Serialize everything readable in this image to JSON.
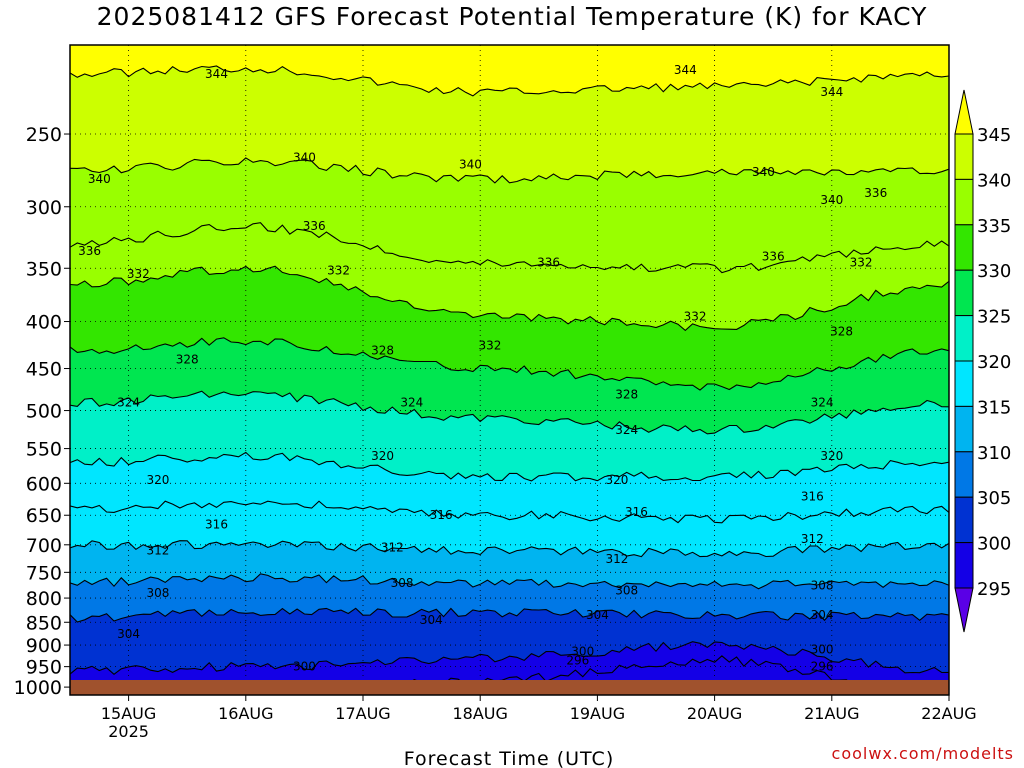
{
  "title": "2025081412 GFS Forecast Potential Temperature (K) for KACY",
  "credit": "coolwx.com/modelts",
  "colors": {
    "ground": "#a0522d",
    "frame": "#000000",
    "credit": "#cc1111",
    "grid": "#000000"
  },
  "chart_data": {
    "type": "heatmap",
    "title": "2025081412 GFS Forecast Potential Temperature (K) for KACY",
    "xlabel": "Forecast Time (UTC)",
    "ylabel": "",
    "x_range": [
      "2025-08-14T12",
      "2025-08-22T00"
    ],
    "y_scale": "log-pressure (hPa), inverted",
    "y_range_hPa": [
      1020,
      200
    ],
    "x_ticks": [
      {
        "label": "15AUG",
        "sub": "2025",
        "t": "2025-08-15T00"
      },
      {
        "label": "16AUG",
        "sub": "",
        "t": "2025-08-16T00"
      },
      {
        "label": "17AUG",
        "sub": "",
        "t": "2025-08-17T00"
      },
      {
        "label": "18AUG",
        "sub": "",
        "t": "2025-08-18T00"
      },
      {
        "label": "19AUG",
        "sub": "",
        "t": "2025-08-19T00"
      },
      {
        "label": "20AUG",
        "sub": "",
        "t": "2025-08-20T00"
      },
      {
        "label": "21AUG",
        "sub": "",
        "t": "2025-08-21T00"
      },
      {
        "label": "22AUG",
        "sub": "",
        "t": "2025-08-22T00"
      }
    ],
    "y_ticks": [
      250,
      300,
      350,
      400,
      450,
      500,
      550,
      600,
      650,
      700,
      750,
      800,
      850,
      900,
      950,
      1000
    ],
    "grid": true,
    "colorbar": {
      "position": "right",
      "labels": [
        345,
        340,
        335,
        330,
        325,
        320,
        315,
        310,
        305,
        300,
        295
      ],
      "bands": [
        {
          "from": 345,
          "color": "#ffff00"
        },
        {
          "from": 340,
          "to": 345,
          "color": "#ccff00"
        },
        {
          "from": 335,
          "to": 340,
          "color": "#99ff00"
        },
        {
          "from": 330,
          "to": 335,
          "color": "#33e600"
        },
        {
          "from": 325,
          "to": 330,
          "color": "#00e650"
        },
        {
          "from": 320,
          "to": 325,
          "color": "#00f0c8"
        },
        {
          "from": 315,
          "to": 320,
          "color": "#00e6ff"
        },
        {
          "from": 310,
          "to": 315,
          "color": "#00b4f0"
        },
        {
          "from": 305,
          "to": 310,
          "color": "#0078e6"
        },
        {
          "from": 300,
          "to": 305,
          "color": "#0032d2"
        },
        {
          "from": 295,
          "to": 300,
          "color": "#1400e6"
        },
        {
          "to": 295,
          "color": "#5a00e6"
        }
      ]
    },
    "contour_interval_K": 2,
    "isentrope_profile": [
      {
        "theta": 344,
        "p_hPa": 215,
        "day16_p": 212,
        "day18_p": 225,
        "day20_p": 222
      },
      {
        "theta": 340,
        "p_hPa": 275,
        "day16_p": 268,
        "day18_p": 280,
        "day20_p": 275
      },
      {
        "theta": 336,
        "p_hPa": 330,
        "day16_p": 315,
        "day18_p": 345,
        "day20_p": 350
      },
      {
        "theta": 332,
        "p_hPa": 365,
        "day16_p": 350,
        "day18_p": 395,
        "day20_p": 405
      },
      {
        "theta": 328,
        "p_hPa": 430,
        "day16_p": 420,
        "day18_p": 450,
        "day20_p": 470
      },
      {
        "theta": 324,
        "p_hPa": 490,
        "day16_p": 480,
        "day18_p": 510,
        "day20_p": 525
      },
      {
        "theta": 320,
        "p_hPa": 570,
        "day16_p": 560,
        "day18_p": 590,
        "day20_p": 590
      },
      {
        "theta": 316,
        "p_hPa": 640,
        "day16_p": 630,
        "day18_p": 650,
        "day20_p": 655
      },
      {
        "theta": 312,
        "p_hPa": 700,
        "day16_p": 700,
        "day18_p": 710,
        "day20_p": 715
      },
      {
        "theta": 308,
        "p_hPa": 770,
        "day16_p": 760,
        "day18_p": 770,
        "day20_p": 775
      },
      {
        "theta": 304,
        "p_hPa": 840,
        "day16_p": 830,
        "day18_p": 830,
        "day20_p": 835
      },
      {
        "theta": 300,
        "p_hPa": 960,
        "day16_p": 950,
        "day18_p": 930,
        "day20_p": 900
      },
      {
        "theta": 296,
        "p_hPa": 1020,
        "day16_p": 1020,
        "day18_p": 985,
        "day20_p": 935
      }
    ],
    "contour_labels": [
      {
        "text": "344",
        "t": "2025-08-15T18",
        "p": 215
      },
      {
        "text": "344",
        "t": "2025-08-19T18",
        "p": 213
      },
      {
        "text": "344",
        "t": "2025-08-21T00",
        "p": 225
      },
      {
        "text": "340",
        "t": "2025-08-14T18",
        "p": 280
      },
      {
        "text": "340",
        "t": "2025-08-16T12",
        "p": 265
      },
      {
        "text": "340",
        "t": "2025-08-17T22",
        "p": 270
      },
      {
        "text": "340",
        "t": "2025-08-20T10",
        "p": 275
      },
      {
        "text": "340",
        "t": "2025-08-21T00",
        "p": 295
      },
      {
        "text": "336",
        "t": "2025-08-21T09",
        "p": 290
      },
      {
        "text": "336",
        "t": "2025-08-14T16",
        "p": 335
      },
      {
        "text": "336",
        "t": "2025-08-16T14",
        "p": 315
      },
      {
        "text": "336",
        "t": "2025-08-18T14",
        "p": 345
      },
      {
        "text": "336",
        "t": "2025-08-20T12",
        "p": 340
      },
      {
        "text": "332",
        "t": "2025-08-15T02",
        "p": 355
      },
      {
        "text": "332",
        "t": "2025-08-16T19",
        "p": 352
      },
      {
        "text": "332",
        "t": "2025-08-18T02",
        "p": 425
      },
      {
        "text": "332",
        "t": "2025-08-19T20",
        "p": 395
      },
      {
        "text": "332",
        "t": "2025-08-21T06",
        "p": 345
      },
      {
        "text": "328",
        "t": "2025-08-15T12",
        "p": 440
      },
      {
        "text": "328",
        "t": "2025-08-17T04",
        "p": 430
      },
      {
        "text": "328",
        "t": "2025-08-19T06",
        "p": 480
      },
      {
        "text": "328",
        "t": "2025-08-21T02",
        "p": 410
      },
      {
        "text": "324",
        "t": "2025-08-15T00",
        "p": 490
      },
      {
        "text": "324",
        "t": "2025-08-17T10",
        "p": 490
      },
      {
        "text": "324",
        "t": "2025-08-19T06",
        "p": 525
      },
      {
        "text": "324",
        "t": "2025-08-20T22",
        "p": 490
      },
      {
        "text": "320",
        "t": "2025-08-15T06",
        "p": 595
      },
      {
        "text": "320",
        "t": "2025-08-17T04",
        "p": 560
      },
      {
        "text": "320",
        "t": "2025-08-19T04",
        "p": 595
      },
      {
        "text": "320",
        "t": "2025-08-21T00",
        "p": 560
      },
      {
        "text": "316",
        "t": "2025-08-15T18",
        "p": 665
      },
      {
        "text": "316",
        "t": "2025-08-17T16",
        "p": 650
      },
      {
        "text": "316",
        "t": "2025-08-19T08",
        "p": 645
      },
      {
        "text": "316",
        "t": "2025-08-20T20",
        "p": 620
      },
      {
        "text": "312",
        "t": "2025-08-15T06",
        "p": 710
      },
      {
        "text": "312",
        "t": "2025-08-17T06",
        "p": 705
      },
      {
        "text": "312",
        "t": "2025-08-19T04",
        "p": 725
      },
      {
        "text": "312",
        "t": "2025-08-20T20",
        "p": 690
      },
      {
        "text": "308",
        "t": "2025-08-15T06",
        "p": 790
      },
      {
        "text": "308",
        "t": "2025-08-17T08",
        "p": 770
      },
      {
        "text": "308",
        "t": "2025-08-19T06",
        "p": 785
      },
      {
        "text": "308",
        "t": "2025-08-20T22",
        "p": 775
      },
      {
        "text": "304",
        "t": "2025-08-15T00",
        "p": 875
      },
      {
        "text": "304",
        "t": "2025-08-17T14",
        "p": 845
      },
      {
        "text": "304",
        "t": "2025-08-19T00",
        "p": 835
      },
      {
        "text": "304",
        "t": "2025-08-20T22",
        "p": 835
      },
      {
        "text": "300",
        "t": "2025-08-16T12",
        "p": 950
      },
      {
        "text": "300",
        "t": "2025-08-18T21",
        "p": 915
      },
      {
        "text": "300",
        "t": "2025-08-20T22",
        "p": 910
      },
      {
        "text": "296",
        "t": "2025-08-18T20",
        "p": 935
      },
      {
        "text": "296",
        "t": "2025-08-20T22",
        "p": 950
      }
    ]
  }
}
